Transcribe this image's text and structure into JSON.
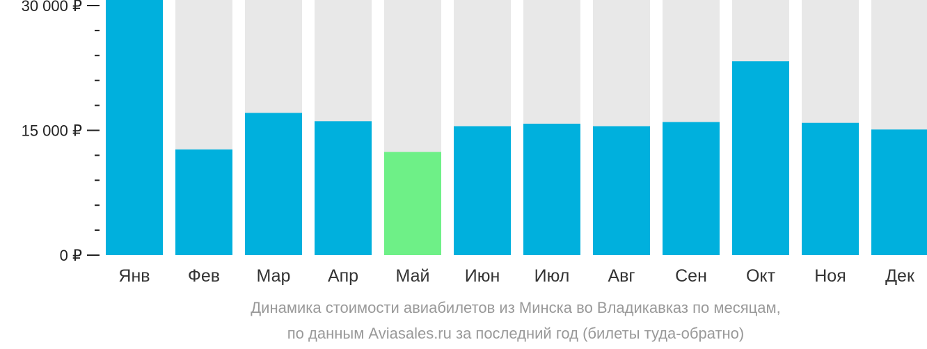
{
  "chart_data": {
    "type": "bar",
    "categories": [
      "Янв",
      "Фев",
      "Мар",
      "Апр",
      "Май",
      "Июн",
      "Июл",
      "Авг",
      "Сен",
      "Окт",
      "Ноя",
      "Дек"
    ],
    "values": [
      30700,
      12700,
      17100,
      16100,
      12400,
      15500,
      15800,
      15500,
      16000,
      23300,
      15900,
      15100
    ],
    "highlight_index": 4,
    "ylim": [
      0,
      30000
    ],
    "yticks": [
      0,
      15000,
      30000
    ],
    "ytick_labels": [
      "0 ₽",
      "15 000 ₽",
      "30 000 ₽"
    ],
    "minor_ticks_per_interval": 4,
    "xlabel": "",
    "ylabel": "",
    "grid": false,
    "colors": {
      "bar": "#00b0dd",
      "highlight": "#6ef087",
      "background_bar": "#e8e8e8"
    }
  },
  "caption": {
    "line1": "Динамика стоимости авиабилетов из Минска во Владикавказ по месяцам,",
    "line2": "по данным Aviasales.ru за последний год (билеты туда-обратно)"
  }
}
